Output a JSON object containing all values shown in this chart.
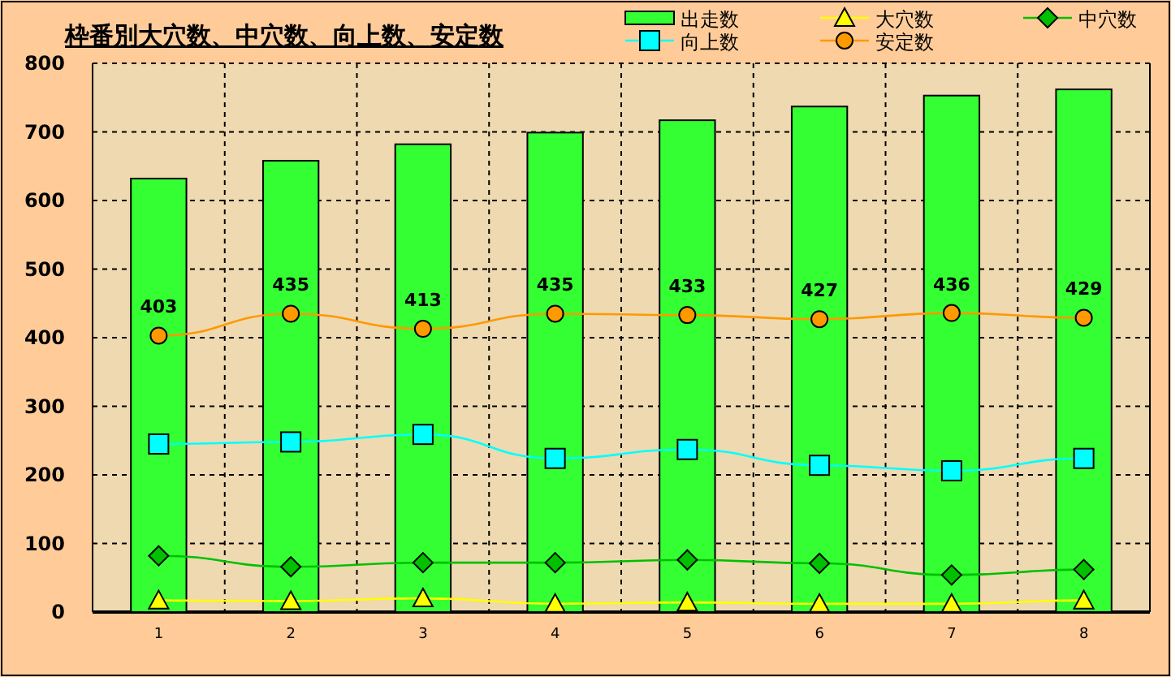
{
  "chart_data": {
    "type": "bar",
    "title": "枠番別大穴数、中穴数、向上数、安定数",
    "categories": [
      "1",
      "2",
      "3",
      "4",
      "5",
      "6",
      "7",
      "8"
    ],
    "ylim": [
      0,
      800
    ],
    "yticks": [
      0,
      100,
      200,
      300,
      400,
      500,
      600,
      700,
      800
    ],
    "grid": true,
    "legend": "top right",
    "series": [
      {
        "name": "出走数",
        "color": "#33ff33",
        "values": [
          632,
          658,
          682,
          699,
          717,
          737,
          753,
          762
        ]
      },
      {
        "name": "大穴数",
        "type": "line",
        "marker": "triangle",
        "color": "#ffff00",
        "values": [
          17,
          16,
          20,
          12,
          14,
          12,
          12,
          17
        ]
      },
      {
        "name": "中穴数",
        "type": "line",
        "marker": "diamond",
        "color": "#00c000",
        "values": [
          82,
          66,
          72,
          72,
          76,
          71,
          54,
          62
        ]
      },
      {
        "name": "向上数",
        "type": "line",
        "marker": "square",
        "color": "#00ffff",
        "values": [
          245,
          248,
          259,
          224,
          237,
          214,
          206,
          224
        ]
      },
      {
        "name": "安定数",
        "type": "line",
        "marker": "circle",
        "color": "#ff9900",
        "values": [
          403,
          435,
          413,
          435,
          433,
          427,
          436,
          429
        ],
        "value_labels": [
          "403",
          "435",
          "413",
          "435",
          "433",
          "427",
          "436",
          "429"
        ]
      }
    ]
  }
}
